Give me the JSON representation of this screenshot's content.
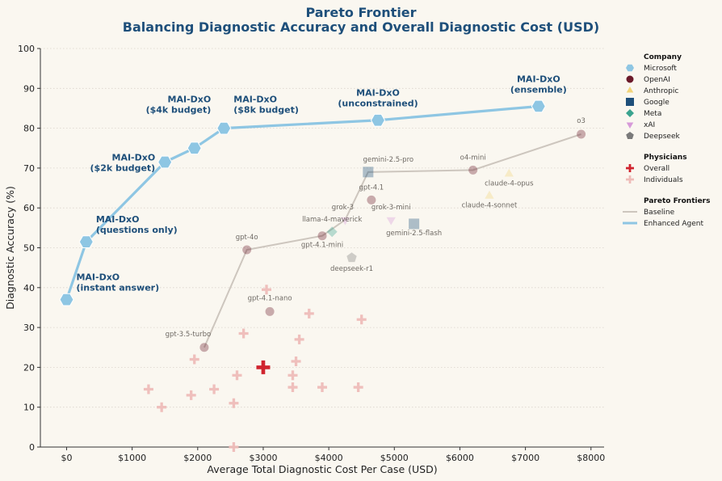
{
  "chart_data": {
    "type": "scatter",
    "title": "Pareto Frontier",
    "subtitle": "Balancing Diagnostic Accuracy and Overall Diagnostic Cost (USD)",
    "xlabel": "Average Total Diagnostic Cost Per Case (USD)",
    "ylabel": "Diagnostic Accuracy (%)",
    "xlim": [
      -400,
      8200
    ],
    "ylim": [
      0,
      100
    ],
    "x_ticks": [
      0,
      1000,
      2000,
      3000,
      4000,
      5000,
      6000,
      7000,
      8000
    ],
    "x_tick_labels": [
      "$0",
      "$1000",
      "$2000",
      "$3000",
      "$4000",
      "$5000",
      "$6000",
      "$7000",
      "$8000"
    ],
    "y_ticks": [
      0,
      10,
      20,
      30,
      40,
      50,
      60,
      70,
      80,
      90,
      100
    ],
    "grid": "horizontal dotted",
    "legend_placement": "right, outside plot",
    "legend": {
      "company_title": "Company",
      "companies": [
        {
          "name": "Microsoft",
          "color": "#8ec6e3",
          "shape": "hexagon"
        },
        {
          "name": "OpenAI",
          "color": "#6b1a2a",
          "shape": "circle"
        },
        {
          "name": "Anthropic",
          "color": "#f2d47a",
          "shape": "triangle-up"
        },
        {
          "name": "Google",
          "color": "#1e4f7a",
          "shape": "square"
        },
        {
          "name": "Meta",
          "color": "#3aa38f",
          "shape": "diamond"
        },
        {
          "name": "xAI",
          "color": "#d79ad9",
          "shape": "triangle-down"
        },
        {
          "name": "Deepseek",
          "color": "#7a7a7a",
          "shape": "pentagon"
        }
      ],
      "physicians_title": "Physicians",
      "physicians": [
        {
          "name": "Overall",
          "color": "#d0232e",
          "shape": "plus"
        },
        {
          "name": "Individuals",
          "color": "#eebcb8",
          "shape": "plus"
        }
      ],
      "frontiers_title": "Pareto Frontiers",
      "frontiers": [
        {
          "name": "Baseline",
          "color": "#cdc6be"
        },
        {
          "name": "Enhanced Agent",
          "color": "#8ec6e3"
        }
      ]
    },
    "enhanced_agent": [
      {
        "label": "MAI-DxO\n(instant answer)",
        "x": 0,
        "y": 37,
        "pos": "right"
      },
      {
        "label": "MAI-DxO\n(questions only)",
        "x": 300,
        "y": 51.5,
        "pos": "right"
      },
      {
        "label": "MAI-DxO\n($2k budget)",
        "x": 1500,
        "y": 71.5,
        "pos": "left"
      },
      {
        "label": "",
        "x": 1950,
        "y": 75,
        "pos": "none"
      },
      {
        "label": "MAI-DxO\n($4k budget)",
        "x": 2400,
        "y": 80,
        "pos": "left"
      },
      {
        "label": "MAI-DxO\n($8k budget)",
        "x": 2400,
        "y": 80,
        "pos": "above-right"
      },
      {
        "label": "MAI-DxO\n(unconstrained)",
        "x": 4750,
        "y": 82,
        "pos": "above"
      },
      {
        "label": "MAI-DxO\n(ensemble)",
        "x": 7200,
        "y": 85.5,
        "pos": "above"
      }
    ],
    "baseline_frontier": [
      {
        "x": 2100,
        "y": 25
      },
      {
        "x": 2750,
        "y": 49.5
      },
      {
        "x": 3900,
        "y": 53
      },
      {
        "x": 4250,
        "y": 57
      },
      {
        "x": 4600,
        "y": 69
      },
      {
        "x": 6200,
        "y": 69.5
      },
      {
        "x": 7850,
        "y": 78.5
      }
    ],
    "models": [
      {
        "name": "gpt-3.5-turbo",
        "company": "OpenAI",
        "x": 2100,
        "y": 25,
        "label_dx": -20,
        "label_dy": -14
      },
      {
        "name": "gpt-4o",
        "company": "OpenAI",
        "x": 2750,
        "y": 49.5,
        "label_dx": 0,
        "label_dy": -13
      },
      {
        "name": "gpt-4.1-nano",
        "company": "OpenAI",
        "x": 3100,
        "y": 34,
        "label_dx": 0,
        "label_dy": -14
      },
      {
        "name": "gpt-4.1-mini",
        "company": "OpenAI",
        "x": 3900,
        "y": 53,
        "label_dx": 0,
        "label_dy": 14
      },
      {
        "name": "gpt-4.1",
        "company": "OpenAI",
        "x": 4650,
        "y": 62,
        "label_dx": 0,
        "label_dy": -13
      },
      {
        "name": "o4-mini",
        "company": "OpenAI",
        "x": 6200,
        "y": 69.5,
        "label_dx": 0,
        "label_dy": -13
      },
      {
        "name": "o3",
        "company": "OpenAI",
        "x": 7850,
        "y": 78.5,
        "label_dx": 0,
        "label_dy": -14
      },
      {
        "name": "claude-4-opus",
        "company": "Anthropic",
        "x": 6750,
        "y": 68.5,
        "label_dx": 0,
        "label_dy": 14
      },
      {
        "name": "claude-4-sonnet",
        "company": "Anthropic",
        "x": 6450,
        "y": 63,
        "label_dx": 0,
        "label_dy": 14
      },
      {
        "name": "gemini-2.5-pro",
        "company": "Google",
        "x": 4600,
        "y": 69,
        "label_dx": 25,
        "label_dy": -13
      },
      {
        "name": "gemini-2.5-flash",
        "company": "Google",
        "x": 5300,
        "y": 56,
        "label_dx": 0,
        "label_dy": 14
      },
      {
        "name": "llama-4-maverick",
        "company": "Meta",
        "x": 4050,
        "y": 54,
        "label_dx": 0,
        "label_dy": -13
      },
      {
        "name": "grok-3",
        "company": "xAI",
        "x": 4250,
        "y": 57,
        "label_dx": -3,
        "label_dy": -13
      },
      {
        "name": "grok-3-mini",
        "company": "xAI",
        "x": 4950,
        "y": 57,
        "label_dx": 0,
        "label_dy": -13
      },
      {
        "name": "deepseek-r1",
        "company": "Deepseek",
        "x": 4350,
        "y": 47.5,
        "label_dx": 0,
        "label_dy": 16
      }
    ],
    "physicians_overall": {
      "x": 3000,
      "y": 20
    },
    "physicians_individuals": [
      {
        "x": 1250,
        "y": 14.5
      },
      {
        "x": 1450,
        "y": 10
      },
      {
        "x": 1900,
        "y": 13
      },
      {
        "x": 1950,
        "y": 22
      },
      {
        "x": 2250,
        "y": 14.5
      },
      {
        "x": 2550,
        "y": 11
      },
      {
        "x": 2550,
        "y": 0
      },
      {
        "x": 2600,
        "y": 18
      },
      {
        "x": 2700,
        "y": 28.5
      },
      {
        "x": 3050,
        "y": 39.5
      },
      {
        "x": 3450,
        "y": 18
      },
      {
        "x": 3450,
        "y": 15
      },
      {
        "x": 3500,
        "y": 21.5
      },
      {
        "x": 3550,
        "y": 27
      },
      {
        "x": 3700,
        "y": 33.5
      },
      {
        "x": 3900,
        "y": 15
      },
      {
        "x": 4450,
        "y": 15
      },
      {
        "x": 4500,
        "y": 32
      }
    ]
  }
}
